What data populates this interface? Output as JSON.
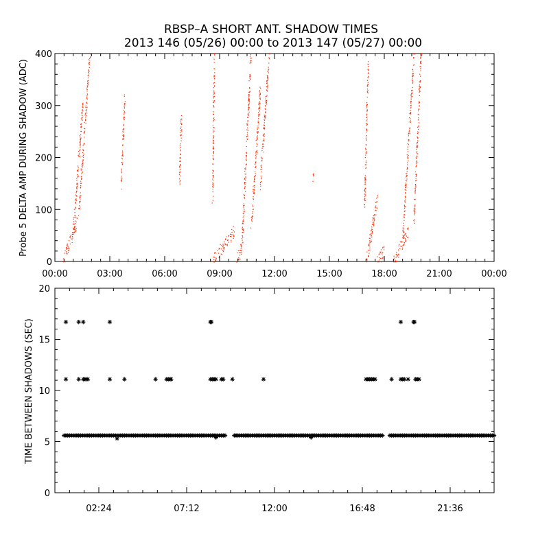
{
  "title_line1": "RBSP–A SHORT ANT. SHADOW TIMES",
  "title_line2": "2013 146 (05/26) 00:00 to 2013 147 (05/27) 00:00",
  "colors": {
    "top_points": "#ff2a00",
    "bottom_points": "#000000",
    "axes": "#000000"
  },
  "chart_data": [
    {
      "type": "scatter",
      "title": "",
      "xlabel": "",
      "ylabel": "Probe 5 DELTA AMP DURING SHADOW (ADC)",
      "xlim_hours": [
        0,
        24
      ],
      "ylim": [
        0,
        400
      ],
      "x_tick_labels": [
        "00:00",
        "03:00",
        "06:00",
        "09:00",
        "12:00",
        "15:00",
        "18:00",
        "21:00",
        "00:00"
      ],
      "y_tick_labels": [
        "0",
        "100",
        "200",
        "300",
        "400"
      ],
      "grid": false,
      "series": [
        {
          "marker": "dot",
          "clusters": [
            {
              "x_start": 0.45,
              "x_end": 1.2,
              "y_start": 0,
              "y_end": 80
            },
            {
              "x_start": 1.0,
              "x_end": 1.5,
              "y_start": 60,
              "y_end": 300
            },
            {
              "x_start": 1.3,
              "x_end": 1.9,
              "y_start": 100,
              "y_end": 400
            },
            {
              "x_start": 3.6,
              "x_end": 3.8,
              "y_start": 150,
              "y_end": 320
            },
            {
              "x_start": 6.8,
              "x_end": 6.9,
              "y_start": 160,
              "y_end": 280
            },
            {
              "x_start": 8.6,
              "x_end": 8.7,
              "y_start": 120,
              "y_end": 400
            },
            {
              "x_start": 8.6,
              "x_end": 9.8,
              "y_start": 0,
              "y_end": 60
            },
            {
              "x_start": 9.9,
              "x_end": 10.2,
              "y_start": 0,
              "y_end": 30
            },
            {
              "x_start": 10.2,
              "x_end": 10.7,
              "y_start": 30,
              "y_end": 400
            },
            {
              "x_start": 10.7,
              "x_end": 11.2,
              "y_start": 60,
              "y_end": 330
            },
            {
              "x_start": 11.2,
              "x_end": 11.7,
              "y_start": 150,
              "y_end": 400
            },
            {
              "x_start": 14.1,
              "x_end": 14.1,
              "y_start": 160,
              "y_end": 160
            },
            {
              "x_start": 16.9,
              "x_end": 17.1,
              "y_start": 100,
              "y_end": 380
            },
            {
              "x_start": 17.0,
              "x_end": 17.6,
              "y_start": 0,
              "y_end": 120
            },
            {
              "x_start": 17.6,
              "x_end": 18.0,
              "y_start": 0,
              "y_end": 20
            },
            {
              "x_start": 18.5,
              "x_end": 19.3,
              "y_start": 0,
              "y_end": 60
            },
            {
              "x_start": 19.0,
              "x_end": 19.6,
              "y_start": 50,
              "y_end": 400
            },
            {
              "x_start": 19.6,
              "x_end": 20.0,
              "y_start": 80,
              "y_end": 400
            }
          ]
        }
      ]
    },
    {
      "type": "scatter",
      "title": "",
      "xlabel": "",
      "ylabel": "TIME BETWEEN SHADOWS (SEC)",
      "xlim_hours": [
        0,
        24
      ],
      "ylim": [
        0,
        20
      ],
      "x_ticks_hours": [
        2.4,
        7.2,
        12.0,
        16.8,
        21.6
      ],
      "x_tick_labels": [
        "02:24",
        "07:12",
        "12:00",
        "16:48",
        "21:36"
      ],
      "y_tick_labels": [
        "0",
        "5",
        "10",
        "15",
        "20"
      ],
      "grid": false,
      "series": [
        {
          "marker": "asterisk",
          "baseline_value": 5.6,
          "baseline_segments": [
            [
              0.5,
              9.3
            ],
            [
              9.8,
              17.9
            ],
            [
              18.3,
              24.0
            ]
          ],
          "dip_points": [
            {
              "x": 3.4,
              "y": 5.3
            },
            {
              "x": 8.8,
              "y": 5.4
            },
            {
              "x": 14.0,
              "y": 5.4
            }
          ],
          "points_11s": [
            0.6,
            1.3,
            1.55,
            1.65,
            1.72,
            1.8,
            3.0,
            3.8,
            5.5,
            6.1,
            6.2,
            6.3,
            6.35,
            8.5,
            8.6,
            8.7,
            8.8,
            9.1,
            9.2,
            9.7,
            11.4,
            17.0,
            17.1,
            17.2,
            17.3,
            17.4,
            17.5,
            18.4,
            18.9,
            19.0,
            19.1,
            19.3,
            19.7,
            19.8,
            19.9
          ],
          "points_16_7s": [
            0.6,
            1.3,
            1.55,
            3.0,
            8.5,
            8.55,
            18.9,
            19.6,
            19.65
          ]
        }
      ]
    }
  ]
}
